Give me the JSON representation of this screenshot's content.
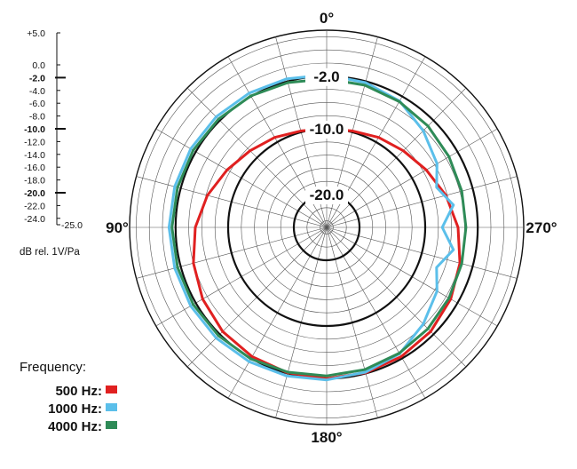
{
  "chart_data": {
    "type": "polar",
    "angle_labels": [
      "0°",
      "90°",
      "180°",
      "270°"
    ],
    "radial_unit": "dB rel. 1V/Pa",
    "r_range_db": [
      -25,
      5
    ],
    "scale_labels": [
      {
        "text": "+5.0",
        "value": 5,
        "bold": false
      },
      {
        "text": "0.0",
        "value": 0,
        "bold": false
      },
      {
        "text": "-2.0",
        "value": -2,
        "bold": true
      },
      {
        "text": "-4.0",
        "value": -4,
        "bold": false
      },
      {
        "text": "-6.0",
        "value": -6,
        "bold": false
      },
      {
        "text": "-8.0",
        "value": -8,
        "bold": false
      },
      {
        "text": "-10.0",
        "value": -10,
        "bold": true
      },
      {
        "text": "-12.0",
        "value": -12,
        "bold": false
      },
      {
        "text": "-14.0",
        "value": -14,
        "bold": false
      },
      {
        "text": "-16.0",
        "value": -16,
        "bold": false
      },
      {
        "text": "-18.0",
        "value": -18,
        "bold": false
      },
      {
        "text": "-20.0",
        "value": -20,
        "bold": true
      },
      {
        "text": "-22.0",
        "value": -22,
        "bold": false
      },
      {
        "text": "-24.0",
        "value": -24,
        "bold": false
      },
      {
        "text": "-25.0",
        "value": -25,
        "bold": false
      }
    ],
    "reference_rings": [
      {
        "text": "-2.0",
        "value": -2
      },
      {
        "text": "-10.0",
        "value": -10
      },
      {
        "text": "-20.0",
        "value": -20
      }
    ],
    "legend_title": "Frequency:",
    "series": [
      {
        "name": "500 Hz:",
        "color": "#e02020",
        "points": [
          [
            0,
            -10
          ],
          [
            15,
            -9.8
          ],
          [
            30,
            -9.2
          ],
          [
            45,
            -8.5
          ],
          [
            60,
            -7.5
          ],
          [
            75,
            -6.2
          ],
          [
            90,
            -5
          ],
          [
            105,
            -4
          ],
          [
            120,
            -3.2
          ],
          [
            135,
            -2.6
          ],
          [
            150,
            -2.3
          ],
          [
            165,
            -2.1
          ],
          [
            180,
            -2
          ],
          [
            195,
            -2.1
          ],
          [
            210,
            -2.3
          ],
          [
            225,
            -2.6
          ],
          [
            240,
            -3.2
          ],
          [
            255,
            -4
          ],
          [
            270,
            -5
          ],
          [
            285,
            -6.2
          ],
          [
            300,
            -7.5
          ],
          [
            315,
            -8.5
          ],
          [
            330,
            -9.2
          ],
          [
            345,
            -9.8
          ],
          [
            360,
            -10
          ]
        ]
      },
      {
        "name": "1000 Hz:",
        "color": "#5bbfea",
        "points": [
          [
            0,
            -1.8
          ],
          [
            15,
            -1.6
          ],
          [
            30,
            -1.4
          ],
          [
            45,
            -1.2
          ],
          [
            60,
            -1.1
          ],
          [
            75,
            -1.05
          ],
          [
            90,
            -1
          ],
          [
            105,
            -1.05
          ],
          [
            120,
            -1.1
          ],
          [
            135,
            -1.2
          ],
          [
            150,
            -1.4
          ],
          [
            165,
            -1.6
          ],
          [
            180,
            -1.8
          ],
          [
            195,
            -2.2
          ],
          [
            210,
            -2.8
          ],
          [
            225,
            -4.2
          ],
          [
            240,
            -5.6
          ],
          [
            250,
            -7.2
          ],
          [
            260,
            -5.4
          ],
          [
            270,
            -7.4
          ],
          [
            280,
            -5.4
          ],
          [
            290,
            -7.2
          ],
          [
            300,
            -5.6
          ],
          [
            315,
            -4.2
          ],
          [
            330,
            -2.8
          ],
          [
            345,
            -2.2
          ],
          [
            360,
            -1.8
          ]
        ]
      },
      {
        "name": "4000 Hz:",
        "color": "#2e8b57",
        "points": [
          [
            0,
            -2.4
          ],
          [
            15,
            -2.2
          ],
          [
            30,
            -1.9
          ],
          [
            45,
            -1.7
          ],
          [
            60,
            -1.55
          ],
          [
            75,
            -1.5
          ],
          [
            90,
            -1.45
          ],
          [
            105,
            -1.5
          ],
          [
            120,
            -1.55
          ],
          [
            135,
            -1.7
          ],
          [
            150,
            -1.9
          ],
          [
            165,
            -2.2
          ],
          [
            180,
            -2.4
          ],
          [
            195,
            -2.6
          ],
          [
            210,
            -2.9
          ],
          [
            225,
            -3.2
          ],
          [
            240,
            -3.5
          ],
          [
            255,
            -3.7
          ],
          [
            270,
            -3.8
          ],
          [
            285,
            -3.7
          ],
          [
            300,
            -3.5
          ],
          [
            315,
            -3.2
          ],
          [
            330,
            -2.9
          ],
          [
            345,
            -2.6
          ],
          [
            360,
            -2.4
          ]
        ]
      }
    ]
  }
}
